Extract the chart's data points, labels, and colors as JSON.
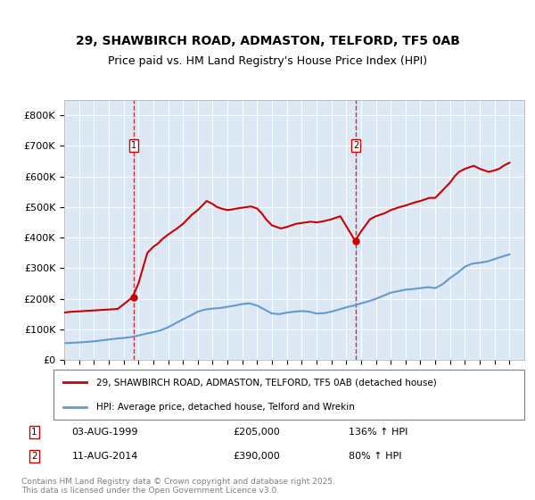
{
  "title_line1": "29, SHAWBIRCH ROAD, ADMASTON, TELFORD, TF5 0AB",
  "title_line2": "Price paid vs. HM Land Registry's House Price Index (HPI)",
  "bg_color": "#dce9f5",
  "plot_bg_color": "#dce9f5",
  "red_color": "#cc0000",
  "blue_color": "#6699cc",
  "annotation1_date": "03-AUG-1999",
  "annotation1_price": 205000,
  "annotation1_label": "136% ↑ HPI",
  "annotation2_date": "11-AUG-2014",
  "annotation2_price": 390000,
  "annotation2_label": "80% ↑ HPI",
  "legend_line1": "29, SHAWBIRCH ROAD, ADMASTON, TELFORD, TF5 0AB (detached house)",
  "legend_line2": "HPI: Average price, detached house, Telford and Wrekin",
  "footer": "Contains HM Land Registry data © Crown copyright and database right 2025.\nThis data is licensed under the Open Government Licence v3.0.",
  "ylabel": "£",
  "yticks": [
    0,
    100000,
    200000,
    300000,
    400000,
    500000,
    600000,
    700000,
    800000
  ],
  "ytick_labels": [
    "£0",
    "£100K",
    "£200K",
    "£300K",
    "£400K",
    "£500K",
    "£600K",
    "£700K",
    "£800K"
  ],
  "xlim_start": 1995,
  "xlim_end": 2026,
  "ylim_min": 0,
  "ylim_max": 850000,
  "hpi_years": [
    1995,
    1995.5,
    1996,
    1996.5,
    1997,
    1997.5,
    1998,
    1998.5,
    1999,
    1999.5,
    2000,
    2000.5,
    2001,
    2001.5,
    2002,
    2002.5,
    2003,
    2003.5,
    2004,
    2004.5,
    2005,
    2005.5,
    2006,
    2006.5,
    2007,
    2007.5,
    2008,
    2008.5,
    2009,
    2009.5,
    2010,
    2010.5,
    2011,
    2011.5,
    2012,
    2012.5,
    2013,
    2013.5,
    2014,
    2014.5,
    2015,
    2015.5,
    2016,
    2016.5,
    2017,
    2017.5,
    2018,
    2018.5,
    2019,
    2019.5,
    2020,
    2020.5,
    2021,
    2021.5,
    2022,
    2022.5,
    2023,
    2023.5,
    2024,
    2024.5,
    2025
  ],
  "hpi_values": [
    55000,
    56000,
    57500,
    59000,
    61000,
    64000,
    67000,
    70000,
    72000,
    75000,
    80000,
    86000,
    91000,
    97000,
    107000,
    120000,
    133000,
    145000,
    158000,
    165000,
    168000,
    170000,
    174000,
    178000,
    183000,
    185000,
    178000,
    165000,
    152000,
    150000,
    155000,
    158000,
    160000,
    158000,
    152000,
    153000,
    158000,
    165000,
    172000,
    178000,
    185000,
    192000,
    200000,
    210000,
    220000,
    225000,
    230000,
    232000,
    235000,
    238000,
    235000,
    248000,
    268000,
    285000,
    305000,
    315000,
    318000,
    322000,
    330000,
    338000,
    345000
  ],
  "price_years": [
    1995,
    1995.3,
    1995.6,
    1996,
    1996.3,
    1996.6,
    1997,
    1997.3,
    1997.6,
    1998,
    1998.3,
    1998.6,
    1999.6,
    2000,
    2000.3,
    2000.6,
    2001,
    2001.3,
    2001.6,
    2002,
    2002.3,
    2002.6,
    2003,
    2003.3,
    2003.6,
    2004,
    2004.3,
    2004.5,
    2004.6,
    2005,
    2005.3,
    2005.6,
    2006,
    2006.3,
    2006.6,
    2007,
    2007.3,
    2007.6,
    2008,
    2008.3,
    2008.6,
    2009,
    2009.3,
    2009.6,
    2010,
    2010.3,
    2010.6,
    2011,
    2011.3,
    2011.6,
    2012,
    2012.3,
    2012.6,
    2013,
    2013.3,
    2013.6,
    2014.6,
    2015,
    2015.3,
    2015.6,
    2016,
    2016.3,
    2016.6,
    2017,
    2017.3,
    2017.6,
    2018,
    2018.3,
    2018.6,
    2019,
    2019.3,
    2019.6,
    2020,
    2020.3,
    2020.6,
    2021,
    2021.3,
    2021.6,
    2022,
    2022.3,
    2022.6,
    2023,
    2023.3,
    2023.6,
    2024,
    2024.3,
    2024.6,
    2025
  ],
  "price_values": [
    155000,
    157000,
    158000,
    159000,
    160000,
    161000,
    162000,
    163000,
    164000,
    165000,
    166000,
    167000,
    205000,
    250000,
    300000,
    350000,
    370000,
    380000,
    395000,
    410000,
    420000,
    430000,
    445000,
    460000,
    475000,
    490000,
    505000,
    515000,
    520000,
    510000,
    500000,
    495000,
    490000,
    492000,
    495000,
    498000,
    500000,
    502000,
    495000,
    480000,
    460000,
    440000,
    435000,
    430000,
    435000,
    440000,
    445000,
    448000,
    450000,
    452000,
    450000,
    452000,
    455000,
    460000,
    465000,
    470000,
    390000,
    420000,
    440000,
    460000,
    470000,
    475000,
    480000,
    490000,
    495000,
    500000,
    505000,
    510000,
    515000,
    520000,
    525000,
    530000,
    530000,
    545000,
    560000,
    580000,
    600000,
    615000,
    625000,
    630000,
    635000,
    625000,
    620000,
    615000,
    620000,
    625000,
    635000,
    645000
  ]
}
